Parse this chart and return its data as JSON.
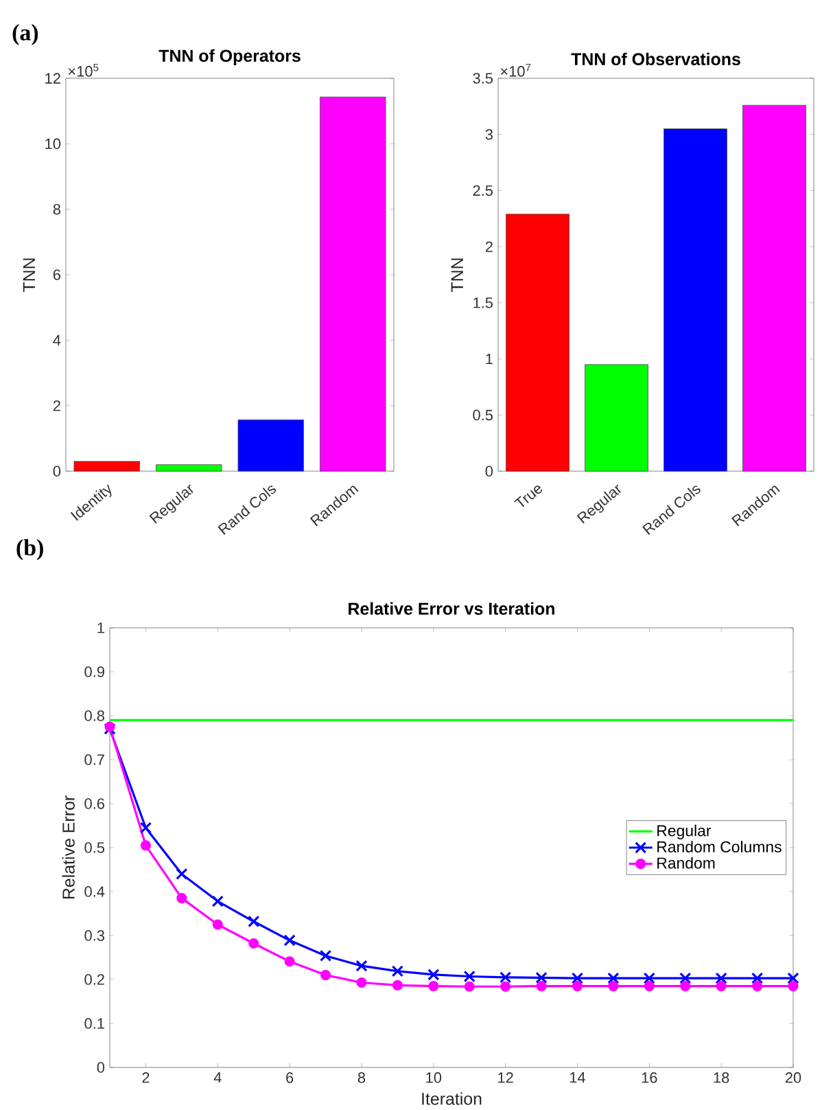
{
  "chart_data": [
    {
      "type": "bar",
      "title": "TNN of Operators",
      "ylabel": "TNN",
      "annotations": [
        "(a)",
        "×10$^{5}$"
      ],
      "categories": [
        "Identity",
        "Regular",
        "Rand Cols",
        "Random"
      ],
      "values": [
        0.3,
        0.2,
        1.57,
        11.43
      ],
      "colors": [
        "#ff0000",
        "#00ff00",
        "#0000ff",
        "#ff00ff"
      ],
      "ylim": [
        0,
        12
      ],
      "yticks": [
        0,
        2,
        4,
        6,
        8,
        10,
        12
      ]
    },
    {
      "type": "bar",
      "title": "TNN of Observations",
      "ylabel": "TNN",
      "annotations": [
        "×10$^{7}$"
      ],
      "categories": [
        "True",
        "Regular",
        "Rand Cols",
        "Random"
      ],
      "values": [
        2.29,
        0.95,
        3.05,
        3.26
      ],
      "colors": [
        "#ff0000",
        "#00ff00",
        "#0000ff",
        "#ff00ff"
      ],
      "ylim": [
        0,
        3.5
      ],
      "yticks": [
        0,
        0.5,
        1,
        1.5,
        2,
        2.5,
        3,
        3.5
      ]
    },
    {
      "type": "line",
      "title": "Relative Error vs Iteration",
      "xlabel": "Iteration",
      "ylabel": "Relative Error",
      "annotations": [
        "(b)"
      ],
      "x": [
        1,
        2,
        3,
        4,
        5,
        6,
        7,
        8,
        9,
        10,
        11,
        12,
        13,
        14,
        15,
        16,
        17,
        18,
        19,
        20
      ],
      "series": [
        {
          "name": "Regular",
          "color": "#00ff00",
          "marker": "none",
          "values": [
            0.79,
            0.79,
            0.79,
            0.79,
            0.79,
            0.79,
            0.79,
            0.79,
            0.79,
            0.79,
            0.79,
            0.79,
            0.79,
            0.79,
            0.79,
            0.79,
            0.79,
            0.79,
            0.79,
            0.79
          ]
        },
        {
          "name": "Random Columns",
          "color": "#0000ff",
          "marker": "cross",
          "values": [
            0.77,
            0.545,
            0.44,
            0.378,
            0.332,
            0.289,
            0.254,
            0.231,
            0.219,
            0.211,
            0.207,
            0.205,
            0.204,
            0.203,
            0.203,
            0.203,
            0.203,
            0.203,
            0.203,
            0.203
          ]
        },
        {
          "name": "Random",
          "color": "#ff00ff",
          "marker": "circle",
          "values": [
            0.775,
            0.505,
            0.385,
            0.325,
            0.282,
            0.241,
            0.21,
            0.193,
            0.187,
            0.185,
            0.184,
            0.184,
            0.185,
            0.185,
            0.185,
            0.185,
            0.185,
            0.185,
            0.185,
            0.185
          ]
        }
      ],
      "xlim": [
        1,
        20
      ],
      "xticks": [
        2,
        4,
        6,
        8,
        10,
        12,
        14,
        16,
        18,
        20
      ],
      "ylim": [
        0,
        1
      ],
      "yticks": [
        0,
        0.1,
        0.2,
        0.3,
        0.4,
        0.5,
        0.6,
        0.7,
        0.8,
        0.9,
        1
      ],
      "legend": "right"
    }
  ]
}
